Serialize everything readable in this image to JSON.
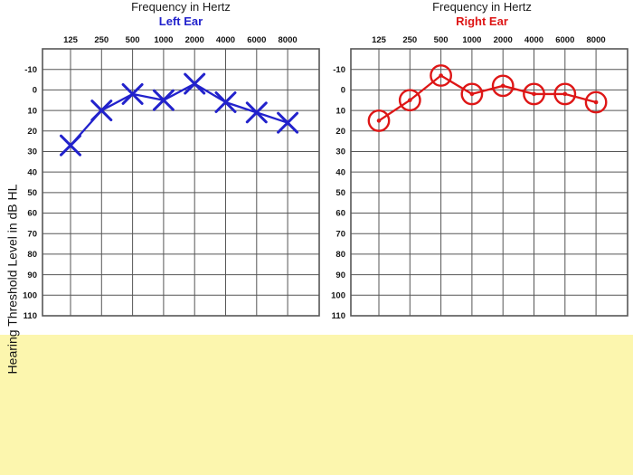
{
  "page": {
    "background_color": "#fcf6ae",
    "panel_color": "#ffffff",
    "grid_color": "#565656",
    "text_color": "#1a1a1a"
  },
  "y_axis_title": "Hearing Threshold Level in dB HL",
  "chart_data": [
    {
      "type": "line",
      "title": "Frequency in Hertz",
      "series_label": "Left Ear",
      "marker": "x",
      "color": "#2222cc",
      "x": [
        125,
        250,
        500,
        1000,
        2000,
        4000,
        6000,
        8000
      ],
      "x_tick_labels": [
        "125",
        "250",
        "500",
        "1000",
        "2000",
        "4000",
        "6000",
        "8000"
      ],
      "values": [
        27,
        10,
        2,
        5,
        -3,
        6,
        11,
        16
      ],
      "xlabel": "Frequency in Hertz",
      "ylabel": "Hearing Threshold Level in dB HL",
      "y_ticks": [
        -10,
        0,
        10,
        20,
        30,
        40,
        50,
        60,
        70,
        80,
        90,
        100,
        110
      ],
      "ylim": [
        -20,
        110
      ],
      "y_inverted": true,
      "x_axis_side": "top",
      "grid": true,
      "legend_position": "none"
    },
    {
      "type": "line",
      "title": "Frequency in Hertz",
      "series_label": "Right Ear",
      "marker": "circle",
      "color": "#de1616",
      "x": [
        125,
        250,
        500,
        1000,
        2000,
        4000,
        6000,
        8000
      ],
      "x_tick_labels": [
        "125",
        "250",
        "500",
        "1000",
        "2000",
        "4000",
        "6000",
        "8000"
      ],
      "values": [
        15,
        5,
        -7,
        2,
        -2,
        2,
        2,
        6
      ],
      "xlabel": "Frequency in Hertz",
      "y_ticks": [
        -10,
        0,
        10,
        20,
        30,
        40,
        50,
        60,
        70,
        80,
        90,
        100,
        110
      ],
      "ylim": [
        -20,
        110
      ],
      "y_inverted": true,
      "x_axis_side": "top",
      "grid": true,
      "legend_position": "none"
    }
  ]
}
